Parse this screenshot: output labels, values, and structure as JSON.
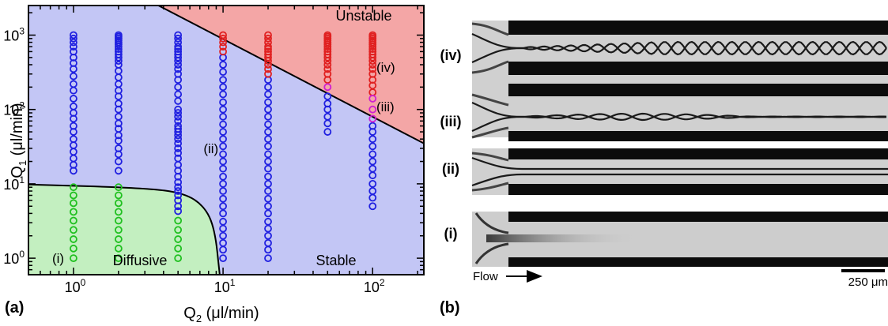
{
  "panel_a": {
    "letter": "(a)",
    "chart_data": {
      "type": "scatter",
      "xscale": "log",
      "yscale": "log",
      "xlim": [
        0.5,
        220
      ],
      "ylim": [
        0.6,
        2500
      ],
      "xlabel": {
        "base": "Q",
        "sub": "2",
        "rest": " (μl/min)"
      },
      "ylabel": {
        "base": "Q",
        "sub": "1",
        "rest": " (μl/min)"
      },
      "x_ticks": [
        {
          "value": 1,
          "base": "10",
          "exp": "0"
        },
        {
          "value": 10,
          "base": "10",
          "exp": "1"
        },
        {
          "value": 100,
          "base": "10",
          "exp": "2"
        }
      ],
      "y_ticks": [
        {
          "value": 1,
          "base": "10",
          "exp": "0"
        },
        {
          "value": 10,
          "base": "10",
          "exp": "1"
        },
        {
          "value": 100,
          "base": "10",
          "exp": "2"
        },
        {
          "value": 1000,
          "base": "10",
          "exp": "3"
        }
      ],
      "regions": [
        {
          "label": "Unstable",
          "color": "#f4a6a6"
        },
        {
          "label": "Stable",
          "color": "#c3c6f5"
        },
        {
          "label": "Diffusive",
          "color": "#c3efc0"
        }
      ],
      "boundaries": {
        "unstable_stable": [
          [
            3.7,
            2500
          ],
          [
            220,
            35
          ]
        ],
        "diffusive_stable": [
          [
            0.5,
            9.8
          ],
          [
            3,
            8.8
          ],
          [
            5.5,
            7.5
          ],
          [
            7.5,
            5
          ],
          [
            8.8,
            2.5
          ],
          [
            9.5,
            0.6
          ]
        ]
      },
      "series": [
        {
          "color": "#2020e0",
          "points": [
            [
              1,
              15
            ],
            [
              1,
              18
            ],
            [
              1,
              22
            ],
            [
              1,
              27
            ],
            [
              1,
              33
            ],
            [
              1,
              40
            ],
            [
              1,
              50
            ],
            [
              1,
              60
            ],
            [
              1,
              75
            ],
            [
              1,
              90
            ],
            [
              1,
              110
            ],
            [
              1,
              140
            ],
            [
              1,
              180
            ],
            [
              1,
              220
            ],
            [
              1,
              280
            ],
            [
              1,
              350
            ],
            [
              1,
              420
            ],
            [
              1,
              500
            ],
            [
              1,
              600
            ],
            [
              1,
              700
            ],
            [
              1,
              800
            ],
            [
              1,
              900
            ],
            [
              1,
              1000
            ],
            [
              2,
              15
            ],
            [
              2,
              20
            ],
            [
              2,
              25
            ],
            [
              2,
              30
            ],
            [
              2,
              38
            ],
            [
              2,
              45
            ],
            [
              2,
              55
            ],
            [
              2,
              65
            ],
            [
              2,
              80
            ],
            [
              2,
              100
            ],
            [
              2,
              120
            ],
            [
              2,
              150
            ],
            [
              2,
              180
            ],
            [
              2,
              220
            ],
            [
              2,
              270
            ],
            [
              2,
              330
            ],
            [
              2,
              400
            ],
            [
              2,
              450
            ],
            [
              2,
              500
            ],
            [
              2,
              550
            ],
            [
              2,
              600
            ],
            [
              2,
              650
            ],
            [
              2,
              700
            ],
            [
              2,
              750
            ],
            [
              2,
              800
            ],
            [
              2,
              850
            ],
            [
              2,
              900
            ],
            [
              2,
              950
            ],
            [
              2,
              1000
            ],
            [
              5,
              4.3
            ],
            [
              5,
              5
            ],
            [
              5,
              6
            ],
            [
              5,
              7
            ],
            [
              5,
              8
            ],
            [
              5,
              9
            ],
            [
              5,
              10.5
            ],
            [
              5,
              12.5
            ],
            [
              5,
              15
            ],
            [
              5,
              18
            ],
            [
              5,
              22
            ],
            [
              5,
              26
            ],
            [
              5,
              30
            ],
            [
              5,
              35
            ],
            [
              5,
              40
            ],
            [
              5,
              45
            ],
            [
              5,
              50
            ],
            [
              5,
              55
            ],
            [
              5,
              60
            ],
            [
              5,
              70
            ],
            [
              5,
              80
            ],
            [
              5,
              90
            ],
            [
              5,
              100
            ],
            [
              5,
              130
            ],
            [
              5,
              160
            ],
            [
              5,
              200
            ],
            [
              5,
              250
            ],
            [
              5,
              300
            ],
            [
              5,
              350
            ],
            [
              5,
              400
            ],
            [
              5,
              450
            ],
            [
              5,
              500
            ],
            [
              5,
              550
            ],
            [
              5,
              600
            ],
            [
              5,
              650
            ],
            [
              5,
              700
            ],
            [
              5,
              800
            ],
            [
              5,
              900
            ],
            [
              5,
              1000
            ],
            [
              10,
              1
            ],
            [
              10,
              1.3
            ],
            [
              10,
              1.6
            ],
            [
              10,
              2
            ],
            [
              10,
              2.5
            ],
            [
              10,
              3.1
            ],
            [
              10,
              4
            ],
            [
              10,
              5
            ],
            [
              10,
              6.3
            ],
            [
              10,
              8
            ],
            [
              10,
              10
            ],
            [
              10,
              12.5
            ],
            [
              10,
              16
            ],
            [
              10,
              20
            ],
            [
              10,
              25
            ],
            [
              10,
              32
            ],
            [
              10,
              40
            ],
            [
              10,
              50
            ],
            [
              10,
              63
            ],
            [
              10,
              80
            ],
            [
              10,
              100
            ],
            [
              10,
              125
            ],
            [
              10,
              160
            ],
            [
              10,
              200
            ],
            [
              10,
              250
            ],
            [
              10,
              320
            ],
            [
              10,
              400
            ],
            [
              10,
              500
            ],
            [
              20,
              1
            ],
            [
              20,
              1.3
            ],
            [
              20,
              1.6
            ],
            [
              20,
              2
            ],
            [
              20,
              2.5
            ],
            [
              20,
              3.1
            ],
            [
              20,
              4
            ],
            [
              20,
              5
            ],
            [
              20,
              6.3
            ],
            [
              20,
              8
            ],
            [
              20,
              10
            ],
            [
              20,
              12.5
            ],
            [
              20,
              16
            ],
            [
              20,
              20
            ],
            [
              20,
              25
            ],
            [
              20,
              32
            ],
            [
              20,
              40
            ],
            [
              20,
              50
            ],
            [
              20,
              63
            ],
            [
              20,
              80
            ],
            [
              20,
              100
            ],
            [
              20,
              125
            ],
            [
              20,
              160
            ],
            [
              20,
              200
            ],
            [
              20,
              250
            ],
            [
              50,
              50
            ],
            [
              50,
              65
            ],
            [
              50,
              80
            ],
            [
              50,
              100
            ],
            [
              50,
              120
            ],
            [
              50,
              150
            ],
            [
              100,
              5
            ],
            [
              100,
              6.5
            ],
            [
              100,
              8
            ],
            [
              100,
              10
            ],
            [
              100,
              13
            ],
            [
              100,
              16
            ],
            [
              100,
              20
            ],
            [
              100,
              25
            ],
            [
              100,
              32
            ],
            [
              100,
              40
            ],
            [
              100,
              50
            ],
            [
              100,
              60
            ]
          ]
        },
        {
          "color": "#e02020",
          "points": [
            [
              10,
              600
            ],
            [
              10,
              700
            ],
            [
              10,
              800
            ],
            [
              10,
              900
            ],
            [
              10,
              1000
            ],
            [
              20,
              300
            ],
            [
              20,
              350
            ],
            [
              20,
              400
            ],
            [
              20,
              450
            ],
            [
              20,
              500
            ],
            [
              20,
              550
            ],
            [
              20,
              600
            ],
            [
              20,
              650
            ],
            [
              20,
              700
            ],
            [
              20,
              800
            ],
            [
              20,
              900
            ],
            [
              20,
              1000
            ],
            [
              50,
              250
            ],
            [
              50,
              300
            ],
            [
              50,
              350
            ],
            [
              50,
              400
            ],
            [
              50,
              450
            ],
            [
              50,
              500
            ],
            [
              50,
              550
            ],
            [
              50,
              600
            ],
            [
              50,
              650
            ],
            [
              50,
              700
            ],
            [
              50,
              750
            ],
            [
              50,
              800
            ],
            [
              50,
              850
            ],
            [
              50,
              900
            ],
            [
              50,
              950
            ],
            [
              50,
              1000
            ],
            [
              100,
              170
            ],
            [
              100,
              210
            ],
            [
              100,
              250
            ],
            [
              100,
              300
            ],
            [
              100,
              350
            ],
            [
              100,
              400
            ],
            [
              100,
              450
            ],
            [
              100,
              500
            ],
            [
              100,
              550
            ],
            [
              100,
              600
            ],
            [
              100,
              650
            ],
            [
              100,
              700
            ],
            [
              100,
              750
            ],
            [
              100,
              800
            ],
            [
              100,
              850
            ],
            [
              100,
              900
            ],
            [
              100,
              950
            ],
            [
              100,
              1000
            ]
          ]
        },
        {
          "color": "#d020d0",
          "points": [
            [
              50,
              200
            ],
            [
              100,
              75
            ],
            [
              100,
              100
            ],
            [
              100,
              140
            ]
          ]
        },
        {
          "color": "#20c020",
          "points": [
            [
              1,
              1
            ],
            [
              1,
              1.35
            ],
            [
              1,
              1.8
            ],
            [
              1,
              2.4
            ],
            [
              1,
              3.2
            ],
            [
              1,
              4.2
            ],
            [
              1,
              5.5
            ],
            [
              1,
              7
            ],
            [
              1,
              9
            ],
            [
              2,
              1
            ],
            [
              2,
              1.35
            ],
            [
              2,
              1.8
            ],
            [
              2,
              2.4
            ],
            [
              2,
              3.2
            ],
            [
              2,
              4.2
            ],
            [
              2,
              5.5
            ],
            [
              2,
              7
            ],
            [
              2,
              9
            ],
            [
              5,
              1
            ],
            [
              5,
              1.35
            ],
            [
              5,
              1.8
            ],
            [
              5,
              2.4
            ],
            [
              5,
              3.2
            ]
          ]
        }
      ],
      "annotations": [
        {
          "text": "(i)",
          "x": 0.72,
          "y": 1.0
        },
        {
          "text": "(ii)",
          "x": 7.4,
          "y": 30
        },
        {
          "text": "(iii)",
          "x": 106,
          "y": 110
        },
        {
          "text": "(iv)",
          "x": 106,
          "y": 370
        }
      ]
    }
  },
  "panel_b": {
    "letter": "(b)",
    "rows": [
      {
        "label": "(iv)",
        "pattern": "braid-strong"
      },
      {
        "label": "(iii)",
        "pattern": "braid-weak"
      },
      {
        "label": "(ii)",
        "pattern": "straight"
      },
      {
        "label": "(i)",
        "pattern": "diffuse"
      }
    ],
    "flow_label": "Flow",
    "scale_label": "250 μm"
  }
}
